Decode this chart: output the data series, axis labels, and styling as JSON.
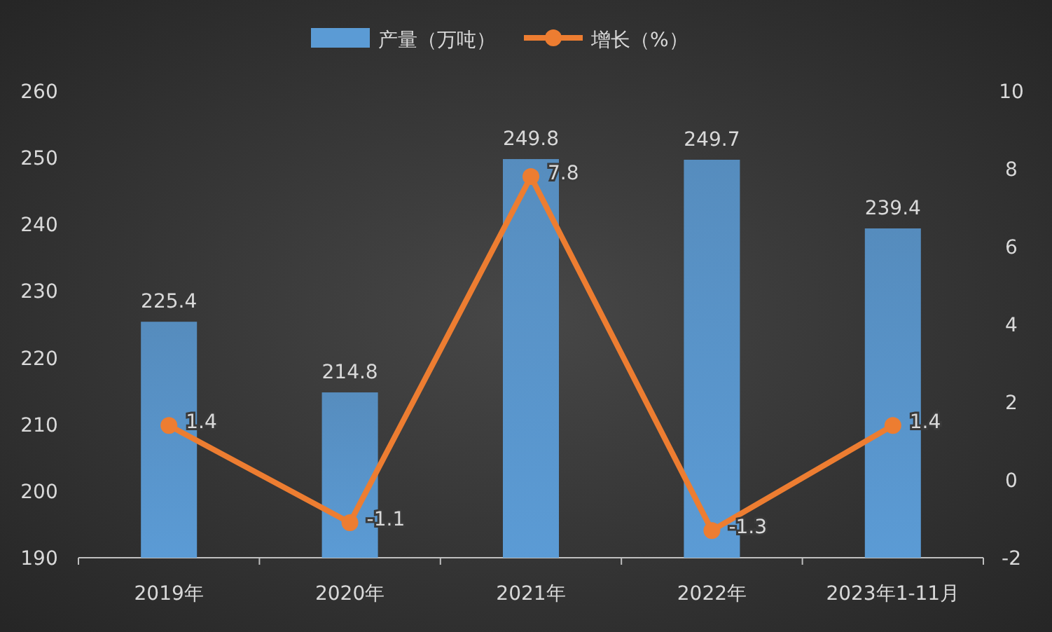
{
  "chart_data": {
    "type": "bar",
    "categories": [
      "2019年",
      "2020年",
      "2021年",
      "2022年",
      "2023年1-11月"
    ],
    "series": [
      {
        "name": "产量（万吨）",
        "color": "#5b9bd5",
        "values": [
          225.4,
          214.8,
          249.8,
          249.7,
          239.4
        ]
      },
      {
        "name": "增长（%）",
        "type": "line",
        "axis": "y2",
        "color": "#ed7d31",
        "values": [
          1.4,
          -1.1,
          7.8,
          -1.3,
          1.4
        ]
      }
    ],
    "ylim": [
      190,
      260
    ],
    "yticks": [
      190,
      200,
      210,
      220,
      230,
      240,
      250,
      260
    ],
    "y2lim": [
      -2,
      10
    ],
    "y2ticks": [
      -2,
      0,
      2,
      4,
      6,
      8,
      10
    ],
    "legend": "top",
    "marker": "circle",
    "line_style": "solid",
    "data_labels": true
  }
}
